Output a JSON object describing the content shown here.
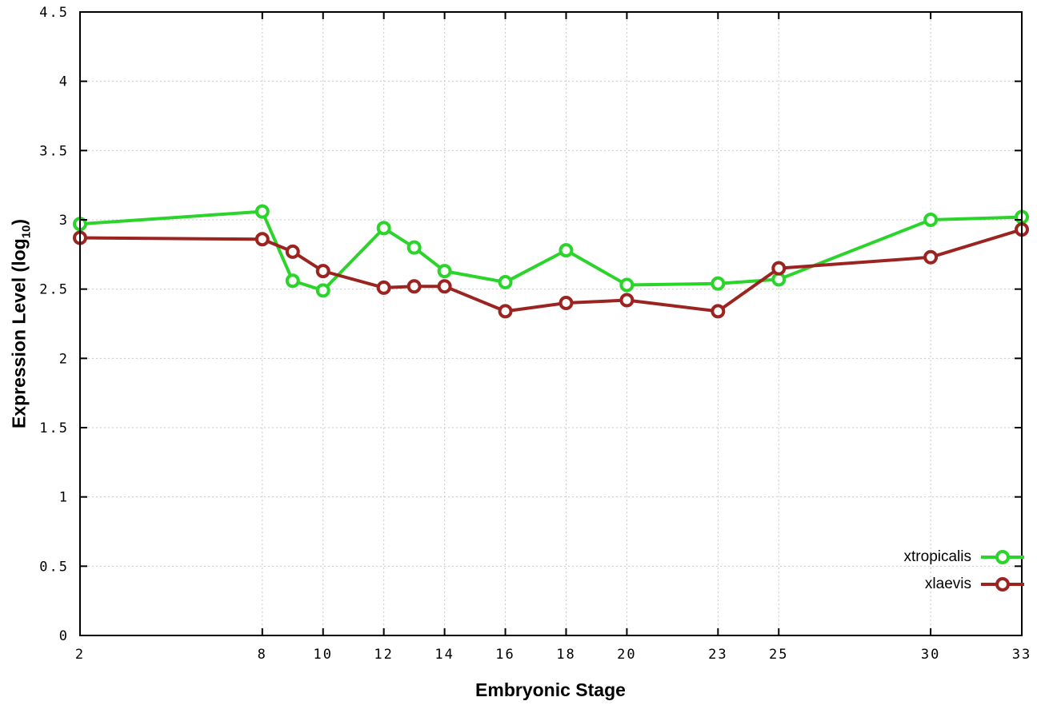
{
  "figure": {
    "background": "#ffffff"
  },
  "chart_data": {
    "type": "line",
    "title": "",
    "xlabel": "Embryonic Stage",
    "ylabel": "Expression Level (log10)",
    "ylabel_prefix": "Expression Level (log",
    "ylabel_sub": "10",
    "ylabel_suffix": ")",
    "xlim": [
      2,
      33
    ],
    "ylim": [
      0,
      4.5
    ],
    "xticks": [
      2,
      8,
      10,
      12,
      14,
      16,
      18,
      20,
      23,
      25,
      30,
      33
    ],
    "yticks": [
      0,
      0.5,
      1,
      1.5,
      2,
      2.5,
      3,
      3.5,
      4,
      4.5
    ],
    "ytick_labels": [
      "0",
      "0.5",
      "1",
      "1.5",
      "2",
      "2.5",
      "3",
      "3.5",
      "4",
      "4.5"
    ],
    "grid": true,
    "legend_position": "inside bottom-right",
    "axis_color": "#000000",
    "grid_color": "#c9c9c9",
    "x": [
      2,
      8,
      9,
      10,
      12,
      13,
      14,
      16,
      18,
      20,
      23,
      25,
      30,
      33
    ],
    "series": [
      {
        "name": "xtropicalis",
        "color": "#2ad42a",
        "marker": "open-circle",
        "values": [
          2.97,
          3.06,
          2.56,
          2.49,
          2.94,
          2.8,
          2.63,
          2.55,
          2.78,
          2.53,
          2.54,
          2.57,
          3.0,
          3.02
        ]
      },
      {
        "name": "xlaevis",
        "color": "#9c2420",
        "marker": "open-circle",
        "values": [
          2.87,
          2.86,
          2.77,
          2.63,
          2.51,
          2.52,
          2.52,
          2.34,
          2.4,
          2.42,
          2.34,
          2.65,
          2.73,
          2.93
        ]
      }
    ]
  }
}
